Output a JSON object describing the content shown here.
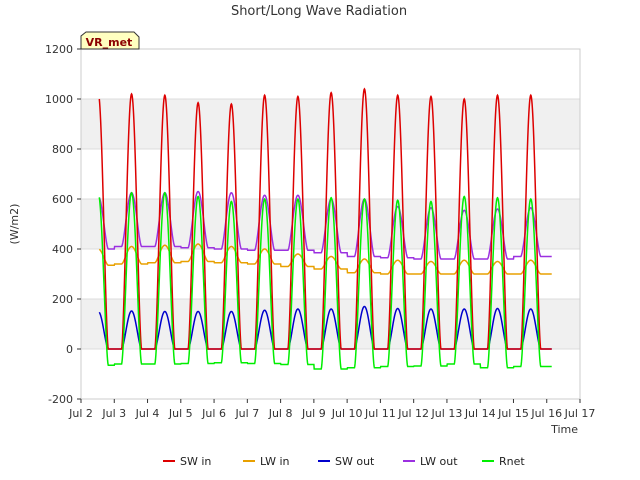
{
  "chart_data": {
    "type": "line",
    "title": "Short/Long Wave Radiation",
    "xlabel": "Time",
    "ylabel": "(W/m2)",
    "badge": "VR_met",
    "xlim": [
      2,
      17
    ],
    "ylim": [
      -200,
      1200
    ],
    "x_ticks": [
      2,
      3,
      4,
      5,
      6,
      7,
      8,
      9,
      10,
      11,
      12,
      13,
      14,
      15,
      16,
      17
    ],
    "x_tick_labels": [
      "Jul 2",
      "Jul 3",
      "Jul 4",
      "Jul 5",
      "Jul 6",
      "Jul 7",
      "Jul 8",
      "Jul 9",
      "Jul 10",
      "Jul 11",
      "Jul 12",
      "Jul 13",
      "Jul 14",
      "Jul 15",
      "Jul 16",
      "Jul 17"
    ],
    "y_ticks": [
      -200,
      0,
      200,
      400,
      600,
      800,
      1000,
      1200
    ],
    "y_tick_labels": [
      "-200",
      "0",
      "200",
      "400",
      "600",
      "800",
      "1000",
      "1200"
    ],
    "grid": true,
    "legend_position": "bottom",
    "days": [
      2.5,
      3.5,
      4.5,
      5.5,
      6.5,
      7.5,
      8.5,
      9.5,
      10.5,
      11.5,
      12.5,
      13.5,
      14.5,
      15.5
    ],
    "x_start": 2.55,
    "x_end": 16.15,
    "series": [
      {
        "name": "SW in",
        "color": "#dd0000",
        "day_peaks": [
          1020,
          1020,
          1015,
          985,
          980,
          1015,
          1010,
          1025,
          1040,
          1015,
          1010,
          1000,
          1015,
          1015
        ],
        "night_values": [
          0,
          0,
          0,
          0,
          0,
          0,
          0,
          0,
          0,
          0,
          0,
          0,
          0,
          0
        ]
      },
      {
        "name": "LW in",
        "color": "#e8a000",
        "day_peaks": [
          400,
          410,
          415,
          420,
          410,
          400,
          380,
          370,
          360,
          355,
          350,
          355,
          350,
          355
        ],
        "night_values": [
          335,
          340,
          345,
          350,
          345,
          340,
          330,
          320,
          305,
          300,
          300,
          300,
          300,
          300
        ]
      },
      {
        "name": "SW out",
        "color": "#0000cc",
        "day_peaks": [
          150,
          152,
          150,
          150,
          150,
          155,
          160,
          160,
          170,
          162,
          160,
          160,
          162,
          160
        ],
        "night_values": [
          0,
          0,
          0,
          0,
          0,
          0,
          0,
          0,
          0,
          0,
          0,
          0,
          0,
          0
        ]
      },
      {
        "name": "LW out",
        "color": "#9b30e0",
        "day_peaks": [
          610,
          625,
          625,
          630,
          625,
          615,
          615,
          600,
          600,
          570,
          565,
          555,
          560,
          565
        ],
        "night_values": [
          400,
          410,
          410,
          405,
          400,
          395,
          395,
          385,
          370,
          365,
          360,
          360,
          360,
          370
        ]
      },
      {
        "name": "Rnet",
        "color": "#00ee00",
        "day_peaks": [
          620,
          625,
          625,
          610,
          590,
          600,
          600,
          605,
          600,
          595,
          590,
          610,
          605,
          600
        ],
        "night_values": [
          -65,
          -60,
          -60,
          -58,
          -55,
          -58,
          -62,
          -80,
          -75,
          -70,
          -68,
          -60,
          -75,
          -70
        ]
      }
    ]
  }
}
